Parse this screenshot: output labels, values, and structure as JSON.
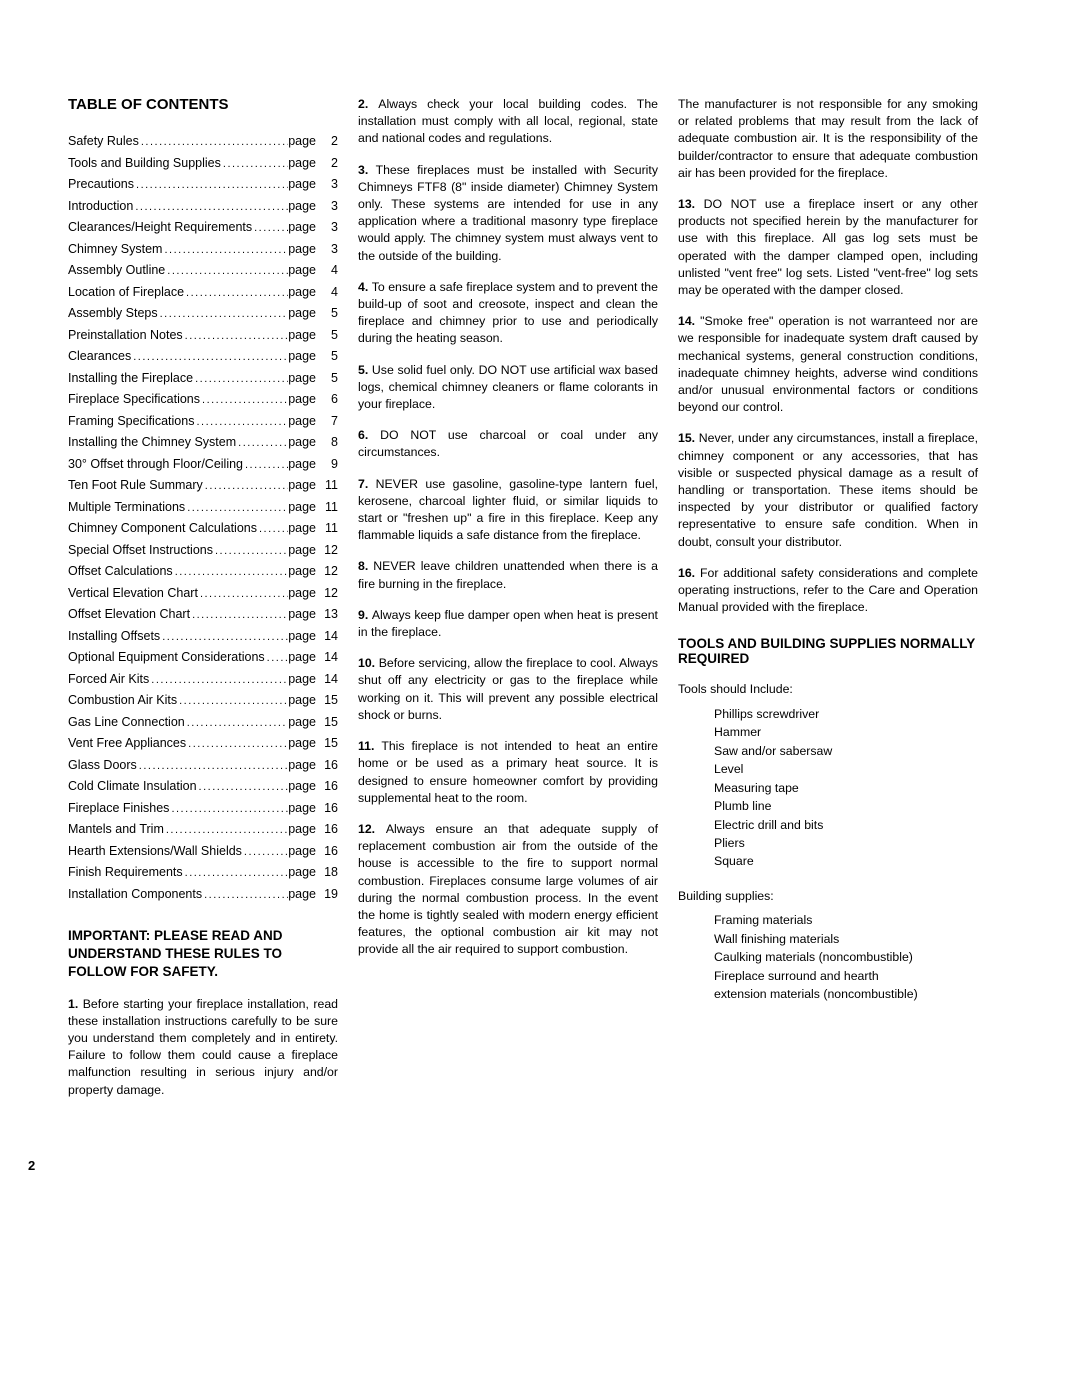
{
  "pageNumber": "2",
  "toc": {
    "heading": "TABLE OF CONTENTS",
    "pageWord": "page",
    "items": [
      {
        "label": "Safety Rules",
        "num": "2"
      },
      {
        "label": "Tools and Building Supplies",
        "num": "2"
      },
      {
        "label": "Precautions",
        "num": "3"
      },
      {
        "label": "Introduction",
        "num": "3"
      },
      {
        "label": "Clearances/Height Requirements",
        "num": "3"
      },
      {
        "label": "Chimney System",
        "num": "3"
      },
      {
        "label": "Assembly Outline",
        "num": "4"
      },
      {
        "label": "Location of Fireplace",
        "num": "4"
      },
      {
        "label": "Assembly Steps",
        "num": "5"
      },
      {
        "label": "Preinstallation Notes",
        "num": "5"
      },
      {
        "label": "Clearances",
        "num": "5"
      },
      {
        "label": "Installing the Fireplace",
        "num": "5"
      },
      {
        "label": "Fireplace Specifications",
        "num": "6"
      },
      {
        "label": "Framing Specifications",
        "num": "7"
      },
      {
        "label": "Installing the Chimney System",
        "num": "8"
      },
      {
        "label": "30° Offset through Floor/Ceiling",
        "num": "9"
      },
      {
        "label": "Ten Foot Rule Summary",
        "num": "11"
      },
      {
        "label": "Multiple Terminations",
        "num": "11"
      },
      {
        "label": "Chimney Component Calculations",
        "num": "11"
      },
      {
        "label": "Special Offset Instructions",
        "num": "12"
      },
      {
        "label": "Offset Calculations",
        "num": "12"
      },
      {
        "label": "Vertical Elevation Chart",
        "num": "12"
      },
      {
        "label": "Offset Elevation Chart",
        "num": "13"
      },
      {
        "label": "Installing Offsets",
        "num": "14"
      },
      {
        "label": "Optional Equipment Considerations",
        "num": "14"
      },
      {
        "label": "Forced Air Kits",
        "num": "14"
      },
      {
        "label": "Combustion Air Kits",
        "num": "15"
      },
      {
        "label": "Gas Line Connection",
        "num": "15"
      },
      {
        "label": "Vent Free Appliances",
        "num": "15"
      },
      {
        "label": "Glass Doors",
        "num": "16"
      },
      {
        "label": "Cold Climate Insulation",
        "num": "16"
      },
      {
        "label": "Fireplace Finishes",
        "num": "16"
      },
      {
        "label": "Mantels and Trim",
        "num": "16"
      },
      {
        "label": "Hearth Extensions/Wall Shields",
        "num": "16"
      },
      {
        "label": "Finish Requirements",
        "num": "18"
      },
      {
        "label": "Installation Components",
        "num": "19"
      }
    ]
  },
  "safetyHeading": "IMPORTANT: PLEASE READ AND UNDERSTAND THESE RULES TO FOLLOW FOR SAFETY.",
  "rules": [
    {
      "n": "1.",
      "text": "Before starting your fireplace installation, read these installation instructions carefully to be sure you understand them completely and in entirety. Failure to follow them could cause a fireplace malfunction resulting in serious injury and/or property damage."
    },
    {
      "n": "2.",
      "text": "Always check your local building codes. The installation must comply with all local, regional, state and national codes and regulations."
    },
    {
      "n": "3.",
      "text": "These fireplaces must be installed with Security Chimneys FTF8 (8\" inside diameter) Chimney System only. These systems are intended for use in any application where a traditional masonry type fireplace would apply. The chimney system must always vent to the outside of the building."
    },
    {
      "n": "4.",
      "text": "To ensure a safe fireplace system and to prevent the build-up of soot and creosote, inspect and clean the fireplace and chimney prior to use and periodically during the heating season."
    },
    {
      "n": "5.",
      "text": "Use solid fuel only. DO NOT use artificial wax based logs, chemical chimney cleaners or flame colorants in your fireplace."
    },
    {
      "n": "6.",
      "text": "DO NOT use charcoal or coal under any circumstances."
    },
    {
      "n": "7.",
      "text": "NEVER use gasoline, gasoline-type lantern fuel, kerosene, charcoal lighter fluid, or similar liquids to start or \"freshen up\" a fire in this fireplace. Keep any flammable liquids a safe distance from the fireplace."
    },
    {
      "n": "8.",
      "text": "NEVER leave children unattended when there is a fire burning in the fireplace."
    },
    {
      "n": "9.",
      "text": "Always keep flue damper open when heat is present in the fireplace."
    },
    {
      "n": "10.",
      "text": "Before servicing, allow the fireplace to cool. Always shut off any electricity or gas to the fireplace while working on it. This will prevent any possible electrical shock or burns."
    },
    {
      "n": "11.",
      "text": "This fireplace is not intended to heat an entire home or be used as a primary heat source. It is designed to ensure homeowner comfort by providing supplemental heat to the room."
    },
    {
      "n": "12.",
      "text": "Always ensure an that adequate supply of replacement combustion air from the outside of the house is accessible to the fire to support normal combustion. Fireplaces consume large volumes of air during the normal combustion process. In the event the home is tightly sealed with modern energy efficient features, the optional combustion air kit may not provide all the air required to support combustion."
    },
    {
      "n": "",
      "text": "The manufacturer is not responsible for any smoking or related problems that may result from the lack of adequate combustion air. It is the responsibility of the builder/contractor to ensure that adequate combustion air has been provided for the fireplace."
    },
    {
      "n": "13.",
      "text": "DO NOT use a fireplace insert or any other products not specified herein by the manufacturer for use with this fireplace. All gas log sets must be operated with the damper clamped open, including unlisted \"vent free\" log sets. Listed \"vent-free\" log sets may be operated with the damper closed."
    },
    {
      "n": "14.",
      "text": "\"Smoke free\" operation is not warranteed nor are we responsible for inadequate system draft caused by mechanical systems, general construction conditions, inadequate chimney heights, adverse wind conditions and/or unusual environmental factors or conditions beyond our control."
    },
    {
      "n": "15.",
      "text": "Never, under any circumstances, install a fireplace, chimney component or any accessories, that has visible or suspected physical damage as a result of handling or transportation. These items should be inspected by your distributor or qualified factory representative to ensure safe condition. When in doubt, consult your distributor."
    },
    {
      "n": "16.",
      "text": "For additional safety considerations and complete operating instructions, refer to the Care and Operation Manual provided with the fireplace."
    }
  ],
  "toolsHeading": "TOOLS AND BUILDING SUPPLIES NORMALLY REQUIRED",
  "toolsIntro": "Tools should Include:",
  "tools": [
    "Phillips screwdriver",
    "Hammer",
    "Saw and/or sabersaw",
    "Level",
    "Measuring tape",
    "Plumb line",
    "Electric drill and bits",
    "Pliers",
    "Square"
  ],
  "suppliesIntro": "Building supplies:",
  "supplies": [
    "Framing materials",
    "Wall finishing materials",
    "Caulking materials (noncombustible)",
    "Fireplace surround and hearth",
    "extension materials (noncombustible)"
  ]
}
